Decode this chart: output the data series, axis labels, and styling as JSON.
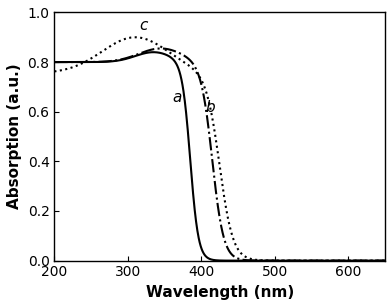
{
  "title": "",
  "xlabel": "Wavelength (nm)",
  "ylabel": "Absorption (a.u.)",
  "xlim": [
    200,
    650
  ],
  "ylim": [
    0.0,
    1.0
  ],
  "xticks": [
    200,
    300,
    400,
    500,
    600
  ],
  "yticks": [
    0.0,
    0.2,
    0.4,
    0.6,
    0.8,
    1.0
  ],
  "background_color": "#ffffff",
  "line_color": "#000000",
  "label_a": "a",
  "label_b": "b",
  "label_c": "c",
  "figsize": [
    3.92,
    3.07
  ],
  "dpi": 100
}
